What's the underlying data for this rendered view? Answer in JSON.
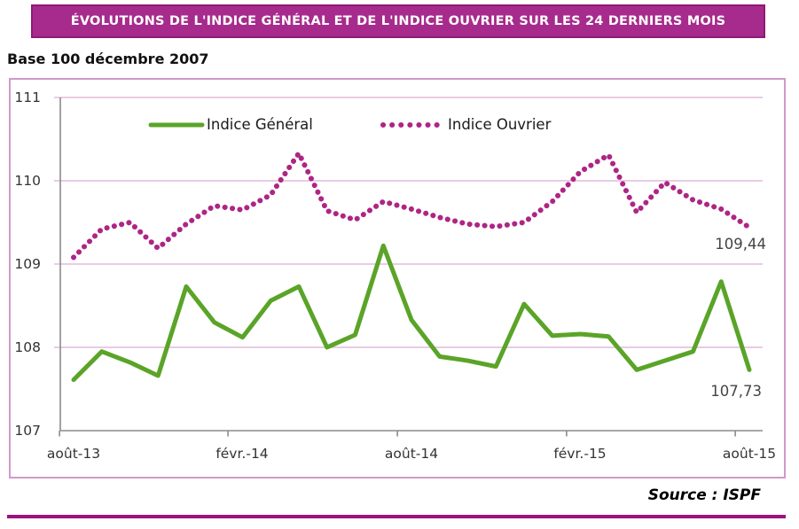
{
  "header": {
    "title": "ÉVOLUTIONS DE L'INDICE GÉNÉRAL ET DE L'INDICE OUVRIER SUR LES 24 DERNIERS MOIS",
    "subtitle": "Base 100 décembre 2007"
  },
  "footer": {
    "source": "Source : ISPF"
  },
  "colors": {
    "title_bg": "#A72B8C",
    "title_border": "#8E1A75",
    "frame_border": "#D199CA",
    "grid_line": "#DBAED5",
    "axis_line": "#8B8B8B",
    "tick_text": "#333333",
    "value_label_text": "#444444",
    "source_rule": "#A1107C",
    "indice_general": "#5AA428",
    "indice_ouvrier": "#AE2585"
  },
  "chart_data": {
    "type": "line",
    "title": "ÉVOLUTIONS DE L'INDICE GÉNÉRAL ET DE L'INDICE OUVRIER SUR LES 24 DERNIERS MOIS",
    "subtitle": "Base 100 décembre 2007",
    "grid": true,
    "legend_position": "top",
    "x_axis": {
      "tick_labels": [
        "août-13",
        "févr.-14",
        "août-14",
        "févr.-15",
        "août-15"
      ],
      "tick_month_indexes": [
        0,
        6,
        12,
        18,
        24
      ],
      "months_total": 25
    },
    "y_axis": {
      "tick_labels": [
        "111",
        "110",
        "109",
        "108",
        "107"
      ],
      "min": 107,
      "max": 111
    },
    "series": [
      {
        "name": "Indice Général",
        "style": "solid",
        "color": "#5AA428",
        "values": [
          107.61,
          107.95,
          107.82,
          107.66,
          108.73,
          108.3,
          108.12,
          108.56,
          108.73,
          108.0,
          108.15,
          109.22,
          108.33,
          107.89,
          107.84,
          107.77,
          108.52,
          108.14,
          108.16,
          108.13,
          107.73,
          107.84,
          107.95,
          108.79,
          107.73
        ]
      },
      {
        "name": "Indice Ouvrier",
        "style": "dotted",
        "color": "#AE2585",
        "values": [
          109.08,
          109.42,
          109.5,
          109.19,
          109.48,
          109.7,
          109.65,
          109.83,
          110.33,
          109.64,
          109.53,
          109.75,
          109.66,
          109.56,
          109.48,
          109.45,
          109.5,
          109.75,
          110.11,
          110.31,
          109.62,
          109.98,
          109.77,
          109.66,
          109.44
        ]
      }
    ],
    "end_labels": [
      {
        "series": "Indice Ouvrier",
        "text": "109,44"
      },
      {
        "series": "Indice Général",
        "text": "107,73"
      }
    ]
  }
}
